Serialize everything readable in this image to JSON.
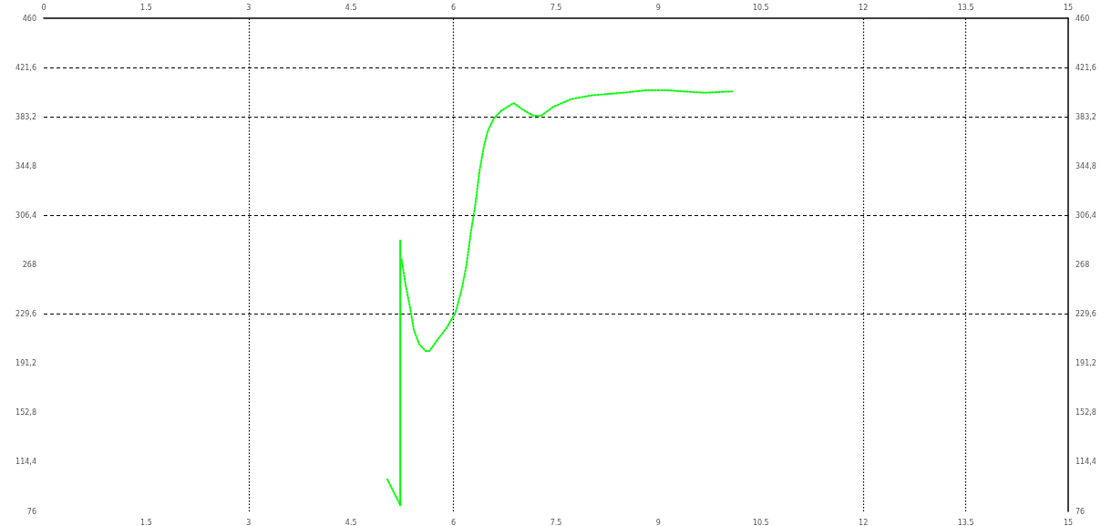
{
  "chart_data": {
    "type": "line",
    "xlim": [
      0,
      15
    ],
    "xticks": [
      1.5,
      3,
      4.5,
      6,
      7.5,
      9,
      10.5,
      12,
      13.5,
      15
    ],
    "x2lim": [
      0,
      15
    ],
    "x2ticks": [
      0,
      1.5,
      3,
      4.5,
      6,
      7.5,
      9,
      10.5,
      12,
      13.5,
      15
    ],
    "ylim": [
      76,
      460
    ],
    "yticks": [
      76,
      {
        "value": 114.4,
        "label": "114,4"
      },
      {
        "value": 152.8,
        "label": "152,8"
      },
      {
        "value": 191.2,
        "label": "191,2"
      },
      {
        "value": 229.6,
        "label": "229,6"
      },
      268,
      {
        "value": 306.4,
        "label": "306,4"
      },
      {
        "value": 344.8,
        "label": "344,8"
      },
      {
        "value": 383.2,
        "label": "383,2"
      },
      {
        "value": 421.6,
        "label": "421,6"
      },
      460
    ],
    "y2lim": [
      76,
      460
    ],
    "y2ticks": [
      76,
      {
        "value": 114.4,
        "label": "114,4"
      },
      {
        "value": 152.8,
        "label": "152,8"
      },
      {
        "value": 191.2,
        "label": "191,2"
      },
      {
        "value": 229.6,
        "label": "229,6"
      },
      268,
      {
        "value": 306.4,
        "label": "306,4"
      },
      {
        "value": 344.8,
        "label": "344,8"
      },
      {
        "value": 383.2,
        "label": "383,2"
      },
      {
        "value": 421.6,
        "label": "421,6"
      },
      460
    ],
    "grid": false,
    "marker": "none",
    "series": [
      {
        "color": "#00ff00",
        "line_style": "dotted",
        "x": [
          5.03,
          5.22,
          null,
          5.24,
          5.3,
          5.37,
          5.42,
          5.5,
          5.59,
          5.65,
          5.77,
          5.9,
          6.03,
          6.12,
          6.19,
          6.25,
          6.32,
          6.38,
          6.44,
          6.5,
          6.59,
          6.7,
          6.88,
          7.01,
          7.17,
          7.28,
          7.46,
          7.72,
          8.03,
          8.48,
          8.83,
          9.1,
          9.37,
          9.68,
          10.08
        ],
        "values": [
          101,
          81,
          null,
          272,
          252,
          233,
          217,
          206,
          201,
          201,
          210,
          219,
          231,
          249,
          268,
          292,
          315,
          341,
          359,
          372,
          382,
          388,
          394,
          389,
          384,
          384,
          391,
          397,
          400,
          402,
          404,
          404,
          403,
          402,
          403
        ]
      },
      {
        "color": "#00ff00",
        "line_style": "solid",
        "x": [
          5.22,
          5.22
        ],
        "values": [
          81,
          287
        ]
      }
    ],
    "ref_lines": [
      {
        "axis": "x",
        "value": 3,
        "color": "#000000",
        "line_style": "dotted"
      },
      {
        "axis": "x",
        "value": 6,
        "color": "#000000",
        "line_style": "dotted"
      },
      {
        "axis": "x",
        "value": 12,
        "color": "#000000",
        "line_style": "dotted"
      },
      {
        "axis": "x",
        "value": 13.5,
        "color": "#000000",
        "line_style": "dotted"
      },
      {
        "axis": "y",
        "value": 421.6,
        "color": "#000000",
        "line_style": "dashed"
      },
      {
        "axis": "y",
        "value": 383.2,
        "color": "#000000",
        "line_style": "dashed"
      },
      {
        "axis": "y",
        "value": 306.4,
        "color": "#000000",
        "line_style": "dashed"
      },
      {
        "axis": "y",
        "value": 229.6,
        "color": "#000000",
        "line_style": "dashed"
      }
    ]
  }
}
